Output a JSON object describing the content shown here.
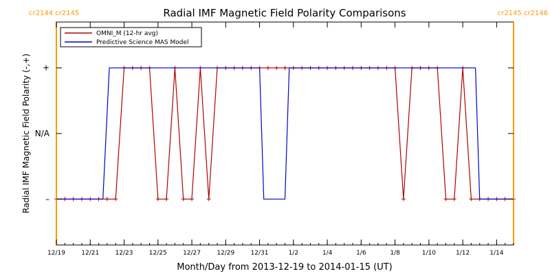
{
  "chart_data": {
    "type": "line",
    "title": "Radial IMF Magnetic Field Polarity Comparisons",
    "xlabel": "Month/Day from 2013-12-19 to 2014-01-15 (UT)",
    "ylabel": "Radial IMF Magnetic Field Polarity (-,+)",
    "xlim": [
      "2013-12-19",
      "2014-01-15"
    ],
    "ylim": [
      -1.7,
      1.7
    ],
    "grid": false,
    "legend_position": "top-left",
    "x_ticks": [
      {
        "date": "2013-12-19",
        "label": "12/19"
      },
      {
        "date": "2013-12-21",
        "label": "12/21"
      },
      {
        "date": "2013-12-23",
        "label": "12/23"
      },
      {
        "date": "2013-12-25",
        "label": "12/25"
      },
      {
        "date": "2013-12-27",
        "label": "12/27"
      },
      {
        "date": "2013-12-29",
        "label": "12/29"
      },
      {
        "date": "2013-12-31",
        "label": "12/31"
      },
      {
        "date": "2014-01-02",
        "label": "1/2"
      },
      {
        "date": "2014-01-04",
        "label": "1/4"
      },
      {
        "date": "2014-01-06",
        "label": "1/6"
      },
      {
        "date": "2014-01-08",
        "label": "1/8"
      },
      {
        "date": "2014-01-10",
        "label": "1/10"
      },
      {
        "date": "2014-01-12",
        "label": "1/12"
      },
      {
        "date": "2014-01-14",
        "label": "1/14"
      }
    ],
    "y_ticks": [
      {
        "value": 1,
        "label": "+"
      },
      {
        "value": 0,
        "label": "N/A"
      },
      {
        "value": -1,
        "label": "–"
      }
    ],
    "rotation_markers": [
      {
        "date": "2013-12-19",
        "label": "cr2144 cr2145",
        "side": "left",
        "color": "#ff9900"
      },
      {
        "date": "2014-01-15",
        "label": "cr2145 cr2146",
        "side": "right",
        "color": "#ff9900"
      }
    ],
    "series": [
      {
        "name": "OMNI_M (12-hr avg)",
        "color": "#b00000",
        "marker": "plus",
        "x": [
          "2013-12-19 00:00",
          "2013-12-19 12:00",
          "2013-12-20 00:00",
          "2013-12-20 12:00",
          "2013-12-21 00:00",
          "2013-12-21 12:00",
          "2013-12-22 00:00",
          "2013-12-22 12:00",
          "2013-12-23 00:00",
          "2013-12-23 12:00",
          "2013-12-24 00:00",
          "2013-12-24 12:00",
          "2013-12-25 00:00",
          "2013-12-25 12:00",
          "2013-12-26 00:00",
          "2013-12-26 12:00",
          "2013-12-27 00:00",
          "2013-12-27 12:00",
          "2013-12-28 00:00",
          "2013-12-28 12:00",
          "2013-12-29 00:00",
          "2013-12-29 12:00",
          "2013-12-30 00:00",
          "2013-12-30 12:00",
          "2013-12-31 00:00",
          "2013-12-31 12:00",
          "2014-01-01 00:00",
          "2014-01-01 12:00",
          "2014-01-02 00:00",
          "2014-01-02 12:00",
          "2014-01-03 00:00",
          "2014-01-03 12:00",
          "2014-01-04 00:00",
          "2014-01-04 12:00",
          "2014-01-05 00:00",
          "2014-01-05 12:00",
          "2014-01-06 00:00",
          "2014-01-06 12:00",
          "2014-01-07 00:00",
          "2014-01-07 12:00",
          "2014-01-08 00:00",
          "2014-01-08 12:00",
          "2014-01-09 00:00",
          "2014-01-09 12:00",
          "2014-01-10 00:00",
          "2014-01-10 12:00",
          "2014-01-11 00:00",
          "2014-01-11 12:00",
          "2014-01-12 00:00",
          "2014-01-12 12:00",
          "2014-01-13 00:00",
          "2014-01-13 12:00",
          "2014-01-14 00:00",
          "2014-01-14 12:00",
          "2014-01-15 00:00"
        ],
        "values": [
          -1,
          -1,
          -1,
          -1,
          -1,
          -1,
          -1,
          -1,
          1,
          1,
          1,
          1,
          -1,
          -1,
          1,
          -1,
          -1,
          1,
          -1,
          1,
          1,
          1,
          1,
          1,
          1,
          1,
          1,
          1,
          1,
          1,
          1,
          1,
          1,
          1,
          1,
          1,
          1,
          1,
          1,
          1,
          1,
          -1,
          1,
          1,
          1,
          1,
          -1,
          -1,
          1,
          -1,
          -1,
          -1,
          -1,
          -1,
          -1
        ]
      },
      {
        "name": "Predictive Science MAS Model",
        "color": "#0000cc",
        "marker": "none",
        "x": [
          "2013-12-19 00:00",
          "2013-12-21 18:00",
          "2013-12-22 03:00",
          "2013-12-31 00:00",
          "2013-12-31 06:00",
          "2014-01-01 12:00",
          "2014-01-01 18:00",
          "2014-01-12 18:00",
          "2014-01-13 00:00",
          "2014-01-15 00:00"
        ],
        "values": [
          -1,
          -1,
          1,
          1,
          -1,
          -1,
          1,
          1,
          -1,
          -1
        ]
      }
    ]
  }
}
